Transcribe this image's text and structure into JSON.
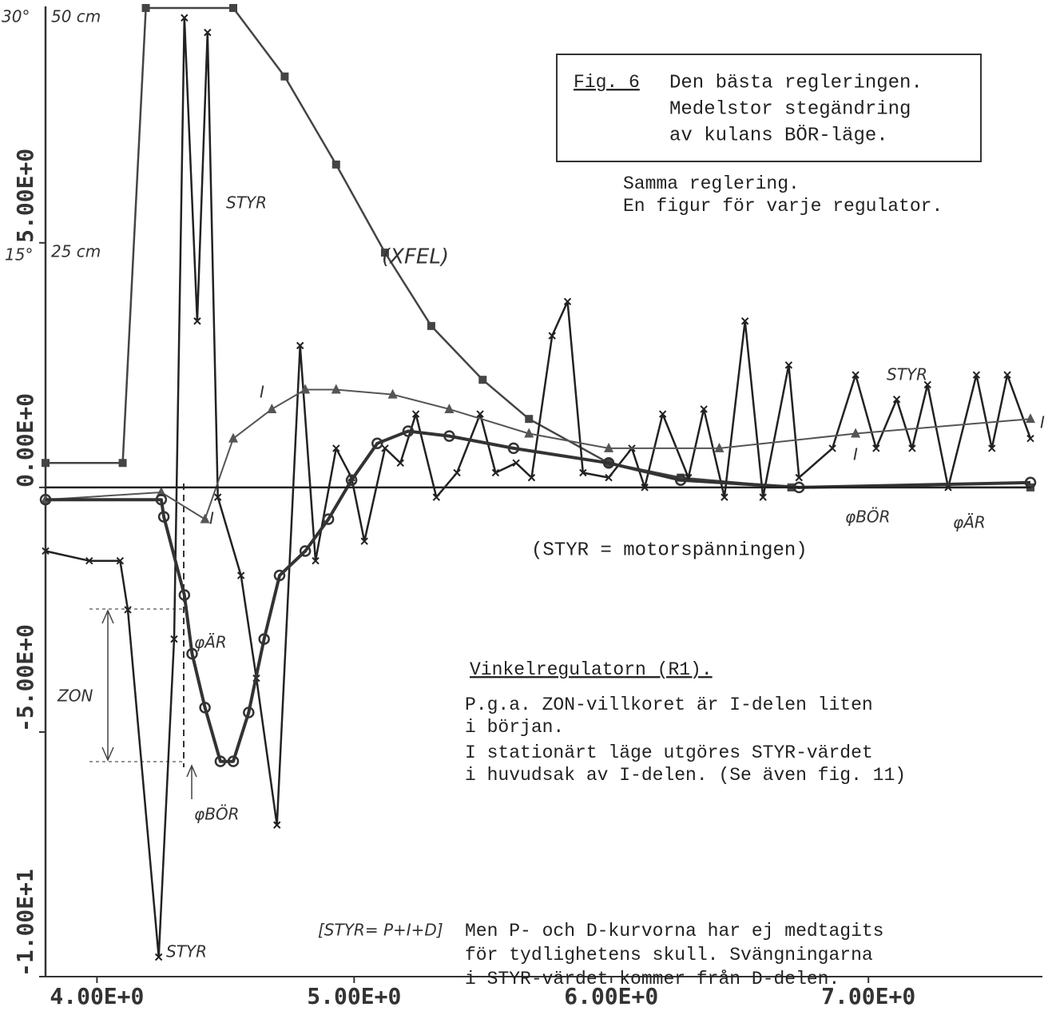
{
  "chart_data": {
    "type": "line",
    "xlim": [
      3.8,
      7.63
    ],
    "ylim": [
      -10,
      9.8
    ],
    "xticks": [
      {
        "value": 4,
        "label": "4.00E+0"
      },
      {
        "value": 5,
        "label": "5.00E+0"
      },
      {
        "value": 6,
        "label": "6.00E+0"
      },
      {
        "value": 7,
        "label": "7.00E+0"
      }
    ],
    "yticks": [
      {
        "value": -10,
        "label": "-1.00E+1"
      },
      {
        "value": -5,
        "label": "-5.00E+0"
      },
      {
        "value": 0,
        "label": "0.00E+0"
      },
      {
        "value": 5,
        "label": "5.00E+0"
      }
    ],
    "grid": false,
    "series": [
      {
        "name": "(XFEL)",
        "color": "#444",
        "marker": "square",
        "x": [
          3.8,
          4.1,
          4.19,
          4.53,
          4.73,
          4.93,
          5.12,
          5.3,
          5.5,
          5.68,
          5.99,
          6.27,
          6.7,
          7.63
        ],
        "values": [
          0.5,
          0.5,
          9.8,
          9.8,
          8.4,
          6.6,
          4.8,
          3.3,
          2.2,
          1.4,
          0.5,
          0.2,
          0.0,
          0.0
        ]
      },
      {
        "name": "STYR",
        "color": "#222",
        "marker": "x",
        "x": [
          3.8,
          3.97,
          4.09,
          4.12,
          4.24,
          4.3,
          4.34,
          4.39,
          4.43,
          4.47,
          4.56,
          4.62,
          4.7,
          4.79,
          4.85,
          4.93,
          4.99,
          5.04,
          5.12,
          5.18,
          5.24,
          5.32,
          5.4,
          5.49,
          5.55,
          5.63,
          5.69,
          5.77,
          5.83,
          5.89,
          5.99,
          6.08,
          6.13,
          6.2,
          6.3,
          6.36,
          6.44,
          6.52,
          6.59,
          6.69,
          6.73,
          6.86,
          6.95,
          7.03,
          7.11,
          7.17,
          7.23,
          7.31,
          7.42,
          7.48,
          7.54,
          7.63
        ],
        "values": [
          -1.3,
          -1.5,
          -1.5,
          -2.5,
          -9.6,
          -3.1,
          9.6,
          3.4,
          9.3,
          -0.2,
          -1.8,
          -3.9,
          -6.9,
          2.9,
          -1.5,
          0.8,
          0.2,
          -1.1,
          0.8,
          0.5,
          1.5,
          -0.2,
          0.3,
          1.5,
          0.3,
          0.5,
          0.2,
          3.1,
          3.8,
          0.3,
          0.2,
          0.8,
          0,
          1.5,
          0.2,
          1.6,
          -0.2,
          3.4,
          -0.2,
          2.5,
          0.2,
          0.8,
          2.3,
          0.8,
          1.8,
          0.8,
          2.1,
          0,
          2.3,
          0.8,
          2.3,
          1.0
        ]
      },
      {
        "name": "I",
        "color": "#555",
        "marker": "triangle",
        "x": [
          3.8,
          4.25,
          4.42,
          4.53,
          4.68,
          4.81,
          4.93,
          5.15,
          5.37,
          5.68,
          5.99,
          6.42,
          6.95,
          7.63
        ],
        "values": [
          -0.25,
          -0.1,
          -0.65,
          1.0,
          1.6,
          2.0,
          2.0,
          1.9,
          1.6,
          1.1,
          0.8,
          0.8,
          1.1,
          1.4
        ]
      },
      {
        "name": "φÄR",
        "color": "#333",
        "marker": "circle",
        "x": [
          3.8,
          4.25,
          4.26,
          4.34,
          4.37,
          4.42,
          4.48,
          4.53,
          4.59,
          4.65,
          4.71,
          4.81,
          4.9,
          4.99,
          5.09,
          5.21,
          5.37,
          5.62,
          5.99,
          6.27,
          6.73,
          7.63
        ],
        "values": [
          -0.25,
          -0.25,
          -0.6,
          -2.2,
          -3.4,
          -4.5,
          -5.6,
          -5.6,
          -4.6,
          -3.1,
          -1.8,
          -1.3,
          -0.65,
          0.15,
          0.9,
          1.15,
          1.05,
          0.8,
          0.5,
          0.15,
          0,
          0.1
        ]
      },
      {
        "name": "φBÖR",
        "color": "#222",
        "marker": "none",
        "x": [
          3.8,
          7.63
        ],
        "values": [
          0,
          0
        ]
      }
    ],
    "axis_notes": [
      "30°",
      "50 cm",
      "15°",
      "25 cm"
    ],
    "zone_label": "ZON",
    "caption": {
      "label": "Fig. 6",
      "lines": [
        "Den bästa regleringen.",
        "Medelstor stegändring",
        "av kulans BÖR-läge."
      ]
    },
    "notes": [
      "Samma reglering.",
      "En figur för varje regulator."
    ],
    "footnote": "(STYR = motorspänningen)",
    "text_block": {
      "heading": "Vinkelregulatorn (R1).",
      "lines": [
        "P.g.a. ZON-villkoret är I-delen liten",
        "i början.",
        "I stationärt läge utgöres STYR-värdet",
        "i huvudsak av I-delen. (Se även fig. 11)"
      ]
    },
    "formula": "[STYR= P+I+D]",
    "closing_lines": [
      "Men P- och D-kurvorna har ej medtagits",
      "för tydlighetens skull. Svängningarna",
      "i STYR-värdet kommer från D-delen."
    ]
  }
}
